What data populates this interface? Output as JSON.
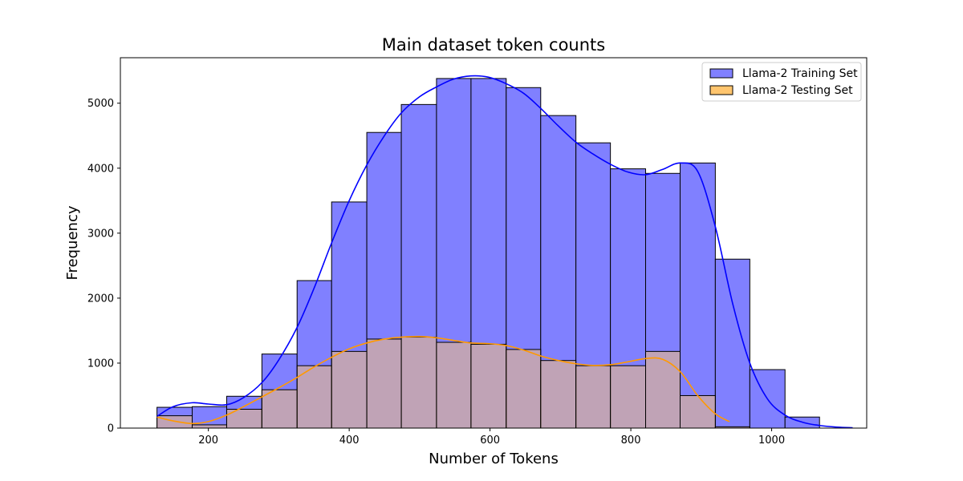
{
  "chart_data": {
    "type": "bar",
    "title": "Main dataset token counts",
    "xlabel": "Number of Tokens",
    "ylabel": "Frequency",
    "xlim": [
      75,
      1135
    ],
    "ylim": [
      0,
      5700
    ],
    "xticks": [
      200,
      400,
      600,
      800,
      1000
    ],
    "yticks": [
      0,
      1000,
      2000,
      3000,
      4000,
      5000
    ],
    "legend_position": "top-right",
    "grid": false,
    "series": [
      {
        "name": "Llama-2 Training Set",
        "color": "#0000ff",
        "fill": "#8080ff",
        "bins": [
          {
            "x0": 127,
            "x1": 177,
            "value": 320
          },
          {
            "x0": 177,
            "x1": 226,
            "value": 330
          },
          {
            "x0": 226,
            "x1": 276,
            "value": 490
          },
          {
            "x0": 276,
            "x1": 326,
            "value": 1140
          },
          {
            "x0": 326,
            "x1": 375,
            "value": 2270
          },
          {
            "x0": 375,
            "x1": 425,
            "value": 3480
          },
          {
            "x0": 425,
            "x1": 474,
            "value": 4550
          },
          {
            "x0": 474,
            "x1": 524,
            "value": 4980
          },
          {
            "x0": 524,
            "x1": 573,
            "value": 5380
          },
          {
            "x0": 573,
            "x1": 623,
            "value": 5380
          },
          {
            "x0": 623,
            "x1": 672,
            "value": 5240
          },
          {
            "x0": 672,
            "x1": 722,
            "value": 4810
          },
          {
            "x0": 722,
            "x1": 771,
            "value": 4390
          },
          {
            "x0": 771,
            "x1": 821,
            "value": 3990
          },
          {
            "x0": 821,
            "x1": 870,
            "value": 3920
          },
          {
            "x0": 870,
            "x1": 920,
            "value": 4080
          },
          {
            "x0": 920,
            "x1": 969,
            "value": 2600
          },
          {
            "x0": 969,
            "x1": 1019,
            "value": 900
          },
          {
            "x0": 1019,
            "x1": 1068,
            "value": 170
          }
        ],
        "kde": [
          [
            127,
            180
          ],
          [
            150,
            330
          ],
          [
            177,
            390
          ],
          [
            200,
            370
          ],
          [
            226,
            360
          ],
          [
            250,
            470
          ],
          [
            276,
            700
          ],
          [
            300,
            1050
          ],
          [
            326,
            1550
          ],
          [
            350,
            2150
          ],
          [
            375,
            2850
          ],
          [
            400,
            3500
          ],
          [
            425,
            4050
          ],
          [
            450,
            4500
          ],
          [
            474,
            4850
          ],
          [
            500,
            5100
          ],
          [
            524,
            5250
          ],
          [
            548,
            5370
          ],
          [
            573,
            5420
          ],
          [
            598,
            5400
          ],
          [
            623,
            5300
          ],
          [
            648,
            5150
          ],
          [
            672,
            4920
          ],
          [
            697,
            4650
          ],
          [
            722,
            4400
          ],
          [
            746,
            4220
          ],
          [
            771,
            4060
          ],
          [
            796,
            3940
          ],
          [
            821,
            3900
          ],
          [
            845,
            3980
          ],
          [
            870,
            4080
          ],
          [
            895,
            3950
          ],
          [
            920,
            3100
          ],
          [
            945,
            1900
          ],
          [
            969,
            1000
          ],
          [
            994,
            450
          ],
          [
            1019,
            200
          ],
          [
            1044,
            90
          ],
          [
            1068,
            40
          ],
          [
            1093,
            15
          ],
          [
            1115,
            5
          ]
        ]
      },
      {
        "name": "Llama-2 Testing Set",
        "color": "#ff9900",
        "fill": "#ffc56e",
        "bins": [
          {
            "x0": 127,
            "x1": 177,
            "value": 190
          },
          {
            "x0": 177,
            "x1": 226,
            "value": 50
          },
          {
            "x0": 226,
            "x1": 276,
            "value": 290
          },
          {
            "x0": 276,
            "x1": 326,
            "value": 590
          },
          {
            "x0": 326,
            "x1": 375,
            "value": 960
          },
          {
            "x0": 375,
            "x1": 425,
            "value": 1180
          },
          {
            "x0": 425,
            "x1": 474,
            "value": 1370
          },
          {
            "x0": 474,
            "x1": 524,
            "value": 1400
          },
          {
            "x0": 524,
            "x1": 573,
            "value": 1320
          },
          {
            "x0": 573,
            "x1": 623,
            "value": 1290
          },
          {
            "x0": 623,
            "x1": 672,
            "value": 1210
          },
          {
            "x0": 672,
            "x1": 722,
            "value": 1040
          },
          {
            "x0": 722,
            "x1": 771,
            "value": 960
          },
          {
            "x0": 771,
            "x1": 821,
            "value": 960
          },
          {
            "x0": 821,
            "x1": 870,
            "value": 1180
          },
          {
            "x0": 870,
            "x1": 920,
            "value": 500
          },
          {
            "x0": 920,
            "x1": 969,
            "value": 20
          }
        ],
        "kde": [
          [
            127,
            170
          ],
          [
            150,
            110
          ],
          [
            177,
            70
          ],
          [
            200,
            100
          ],
          [
            226,
            200
          ],
          [
            250,
            330
          ],
          [
            276,
            480
          ],
          [
            300,
            620
          ],
          [
            326,
            780
          ],
          [
            350,
            940
          ],
          [
            375,
            1090
          ],
          [
            400,
            1220
          ],
          [
            425,
            1310
          ],
          [
            450,
            1370
          ],
          [
            474,
            1400
          ],
          [
            500,
            1410
          ],
          [
            524,
            1390
          ],
          [
            548,
            1350
          ],
          [
            573,
            1310
          ],
          [
            598,
            1300
          ],
          [
            623,
            1270
          ],
          [
            648,
            1200
          ],
          [
            672,
            1110
          ],
          [
            697,
            1040
          ],
          [
            722,
            990
          ],
          [
            746,
            965
          ],
          [
            771,
            975
          ],
          [
            796,
            1020
          ],
          [
            821,
            1070
          ],
          [
            845,
            1060
          ],
          [
            870,
            870
          ],
          [
            895,
            500
          ],
          [
            920,
            220
          ],
          [
            940,
            100
          ]
        ]
      }
    ]
  }
}
